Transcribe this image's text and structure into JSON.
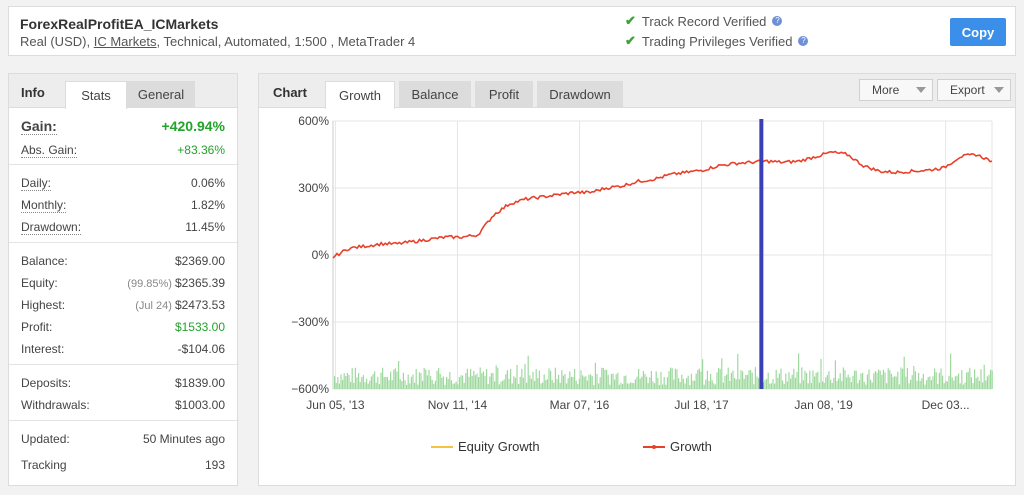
{
  "header": {
    "system_name": "ForexRealProfitEA_ICMarkets",
    "sub_prefix": "Real (USD),",
    "broker": "IC Markets",
    "sub_suffix": ", Technical, Automated, 1:500 , MetaTrader 4",
    "verifications": [
      {
        "label": "Track Record Verified"
      },
      {
        "label": "Trading Privileges Verified"
      }
    ],
    "copy_label": "Copy"
  },
  "info": {
    "title": "Info",
    "tabs": [
      "Stats",
      "General"
    ],
    "active_tab": "Stats",
    "gain": {
      "label": "Gain:",
      "value": "+420.94%"
    },
    "abs_gain": {
      "label": "Abs. Gain:",
      "value": "+83.36%"
    },
    "daily": {
      "label": "Daily:",
      "value": "0.06%"
    },
    "monthly": {
      "label": "Monthly:",
      "value": "1.82%"
    },
    "drawdown": {
      "label": "Drawdown:",
      "value": "11.45%"
    },
    "balance": {
      "label": "Balance:",
      "value": "$2369.00"
    },
    "equity": {
      "label": "Equity:",
      "note": "(99.85%)",
      "value": "$2365.39"
    },
    "highest": {
      "label": "Highest:",
      "note": "(Jul 24)",
      "value": "$2473.53"
    },
    "profit": {
      "label": "Profit:",
      "value": "$1533.00"
    },
    "interest": {
      "label": "Interest:",
      "value": "-$104.06"
    },
    "deposits": {
      "label": "Deposits:",
      "value": "$1839.00"
    },
    "withdrawals": {
      "label": "Withdrawals:",
      "value": "$1003.00"
    },
    "updated": {
      "label": "Updated:",
      "value": "50 Minutes ago"
    },
    "tracking": {
      "label": "Tracking",
      "value": "193"
    }
  },
  "chart_panel": {
    "title": "Chart",
    "tabs": [
      "Growth",
      "Balance",
      "Profit",
      "Drawdown"
    ],
    "active_tab": "Growth",
    "more_label": "More",
    "export_label": "Export"
  },
  "chart_data": {
    "type": "line",
    "x_ticks": [
      "Jun 05, '13",
      "Nov 11, '14",
      "Mar 07, '16",
      "Jul 18, '17",
      "Jan 08, '19",
      "Dec 03..."
    ],
    "y_ticks": [
      "600%",
      "300%",
      "0%",
      "−300%",
      "−600%"
    ],
    "ylim": [
      -600,
      600
    ],
    "series": [
      {
        "name": "Equity Growth",
        "color": "#f5c242",
        "values": []
      },
      {
        "name": "Growth",
        "color": "#e8412b",
        "values": [
          -10,
          30,
          40,
          50,
          50,
          60,
          70,
          80,
          80,
          90,
          180,
          230,
          250,
          260,
          270,
          280,
          280,
          300,
          310,
          330,
          340,
          360,
          370,
          380,
          400,
          410,
          415,
          420,
          415,
          420,
          440,
          460,
          450,
          400,
          375,
          370,
          375,
          380,
          390,
          440,
          450,
          420
        ]
      }
    ],
    "marker_x_fraction": 0.65,
    "grid": true,
    "legend": "bottom"
  },
  "colors": {
    "accent": "#3b8fe8",
    "positive": "#22a32a",
    "growth_line": "#e8412b",
    "marker": "#3a3fb8",
    "volume": "#9ed89e"
  }
}
